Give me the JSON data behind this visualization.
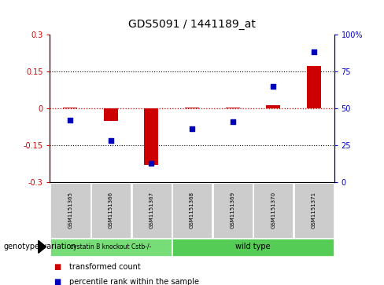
{
  "title": "GDS5091 / 1441189_at",
  "samples": [
    "GSM1151365",
    "GSM1151366",
    "GSM1151367",
    "GSM1151368",
    "GSM1151369",
    "GSM1151370",
    "GSM1151371"
  ],
  "transformed_count": [
    0.003,
    -0.05,
    -0.23,
    0.002,
    0.003,
    0.012,
    0.17
  ],
  "percentile_rank": [
    42,
    28,
    13,
    36,
    41,
    65,
    88
  ],
  "ylim_left": [
    -0.3,
    0.3
  ],
  "ylim_right": [
    0,
    100
  ],
  "yticks_left": [
    -0.3,
    -0.15,
    0.0,
    0.15,
    0.3
  ],
  "yticks_right": [
    0,
    25,
    50,
    75,
    100
  ],
  "ytick_labels_left": [
    "-0.3",
    "-0.15",
    "0",
    "0.15",
    "0.3"
  ],
  "ytick_labels_right": [
    "0",
    "25",
    "50",
    "75",
    "100%"
  ],
  "hlines_black": [
    0.15,
    -0.15
  ],
  "hline_red": 0.0,
  "bar_color": "#cc0000",
  "scatter_color": "#0000bb",
  "bar_width": 0.35,
  "n_group1": 3,
  "n_group2": 4,
  "group1_label": "cystatin B knockout Cstb-/-",
  "group2_label": "wild type",
  "group1_color": "#77dd77",
  "group2_color": "#55cc55",
  "genotype_label": "genotype/variation",
  "legend_red_label": "transformed count",
  "legend_blue_label": "percentile rank within the sample",
  "bg_color": "#ffffff",
  "plot_bg_color": "#ffffff",
  "sample_box_color": "#cccccc",
  "left_tick_color": "#cc0000",
  "right_tick_color": "#0000bb",
  "title_fontsize": 10,
  "tick_fontsize": 7,
  "sample_fontsize": 5,
  "legend_fontsize": 7,
  "group_label_fontsize": 7,
  "genotype_fontsize": 7
}
